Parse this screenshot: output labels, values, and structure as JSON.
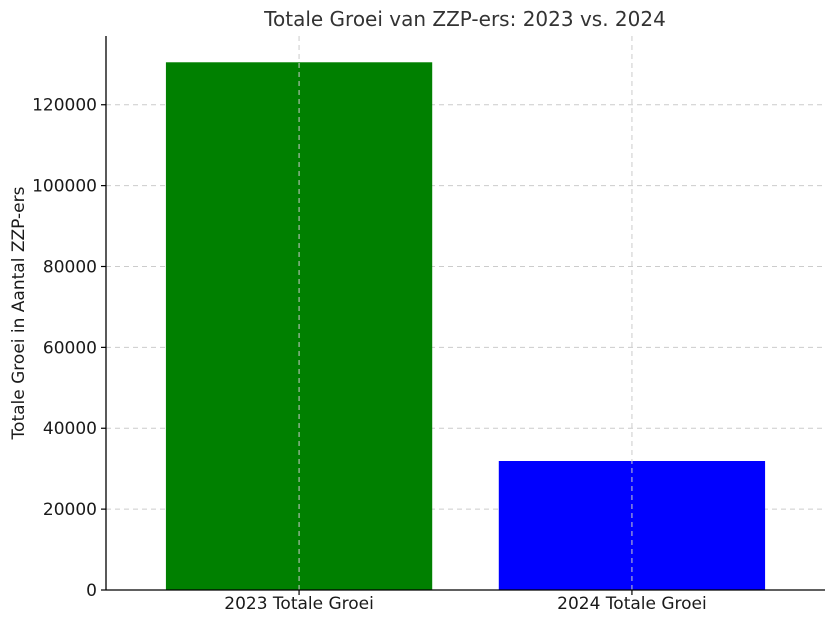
{
  "chart_data": {
    "type": "bar",
    "title": "Totale Groei van ZZP-ers: 2023 vs. 2024",
    "xlabel": "",
    "ylabel": "Totale Groei in Aantal ZZP-ers",
    "categories": [
      "2023 Totale Groei",
      "2024 Totale Groei"
    ],
    "values": [
      130500,
      31900
    ],
    "bar_colors": [
      "#008000",
      "#0000ff"
    ],
    "ylim": [
      0,
      137000
    ],
    "yticks": [
      0,
      20000,
      40000,
      60000,
      80000,
      100000,
      120000
    ],
    "ytick_labels": [
      "0",
      "20000",
      "40000",
      "60000",
      "80000",
      "100000",
      "120000"
    ],
    "grid": true
  }
}
